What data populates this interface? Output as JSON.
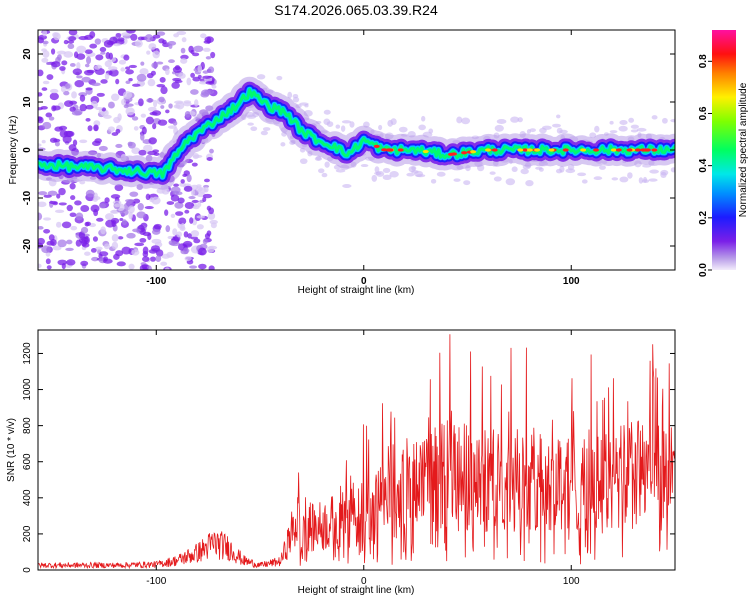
{
  "title": "S174.2026.065.03.39.R24",
  "chart_data": [
    {
      "type": "heatmap",
      "name": "spectrogram",
      "xlabel": "Height of straight line (km)",
      "ylabel": "Frequency (Hz)",
      "xlim": [
        -157,
        150
      ],
      "ylim": [
        -25,
        25
      ],
      "xticks": [
        -100,
        0,
        100
      ],
      "xtick_labels": [
        "-100",
        "0",
        "100"
      ],
      "yticks": [
        -20,
        -10,
        0,
        10,
        20
      ],
      "ytick_labels": [
        "-20",
        "-10",
        "0",
        "10",
        "20"
      ],
      "ridge": {
        "x": [
          -157,
          -120,
          -97,
          -85,
          -72,
          -62,
          -55,
          -45,
          -38,
          -30,
          -22,
          -15,
          -8,
          0,
          10,
          25,
          40,
          60,
          80,
          100,
          120,
          150
        ],
        "y": [
          -3,
          -4,
          -5,
          2,
          6,
          9,
          12,
          9,
          8,
          4,
          2,
          1,
          -1,
          2,
          0,
          0,
          -1,
          0,
          0,
          0,
          0,
          0
        ]
      },
      "colorbar": {
        "label": "Normalized spectral amplitude",
        "range": [
          0.0,
          0.92
        ],
        "ticks": [
          "0.0",
          "0.2",
          "0.4",
          "0.6",
          "0.8"
        ]
      }
    },
    {
      "type": "line",
      "name": "snr",
      "xlabel": "Height of straight line (km)",
      "ylabel": "SNR (10 * v/v)",
      "xlim": [
        -157,
        150
      ],
      "ylim": [
        0,
        1330
      ],
      "xticks": [
        -100,
        0,
        100
      ],
      "xtick_labels": [
        "-100",
        "0",
        "100"
      ],
      "yticks": [
        0,
        200,
        400,
        600,
        800,
        1000,
        1200
      ],
      "ytick_labels": [
        "0",
        "200",
        "400",
        "600",
        "800",
        "1000",
        "1200"
      ],
      "color": "#e41a1c",
      "envelope": {
        "x": [
          -157,
          -120,
          -100,
          -90,
          -80,
          -72,
          -65,
          -58,
          -50,
          -40,
          -35,
          -30,
          -25,
          -15,
          -5,
          5,
          15,
          30,
          40,
          50,
          60,
          70,
          80,
          90,
          100,
          110,
          120,
          130,
          140,
          150
        ],
        "y": [
          30,
          30,
          35,
          60,
          110,
          170,
          140,
          60,
          30,
          55,
          230,
          360,
          260,
          300,
          360,
          400,
          480,
          540,
          600,
          580,
          560,
          600,
          560,
          600,
          560,
          560,
          540,
          620,
          580,
          560
        ]
      }
    }
  ]
}
